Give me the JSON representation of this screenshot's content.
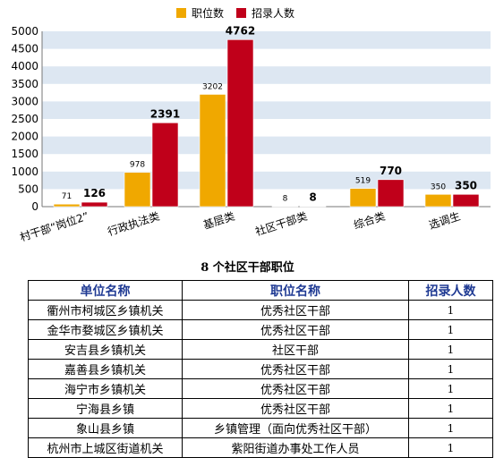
{
  "chart_data": {
    "type": "bar",
    "categories": [
      "村干部“岗位2”",
      "行政执法类",
      "基层类",
      "社区干部类",
      "综合类",
      "选调生"
    ],
    "series": [
      {
        "name": "职位数",
        "color": "#f0a800",
        "values": [
          71,
          978,
          3202,
          8,
          519,
          350
        ]
      },
      {
        "name": "招录人数",
        "color": "#c0001a",
        "values": [
          126,
          2391,
          4762,
          8,
          770,
          350
        ]
      }
    ],
    "yticks": [
      "0",
      "500",
      "1000",
      "1500",
      "2000",
      "2500",
      "3000",
      "3500",
      "4000",
      "4500",
      "5000"
    ],
    "ylim": [
      0,
      5000
    ],
    "grid_bands": true,
    "legend_position": "top"
  },
  "table": {
    "title": "8 个社区干部职位",
    "headers": [
      "单位名称",
      "职位名称",
      "招录人数"
    ],
    "rows": [
      [
        "衢州市柯城区乡镇机关",
        "优秀社区干部",
        "1"
      ],
      [
        "金华市婺城区乡镇机关",
        "优秀社区干部",
        "1"
      ],
      [
        "安吉县乡镇机关",
        "社区干部",
        "1"
      ],
      [
        "嘉善县乡镇机关",
        "优秀社区干部",
        "1"
      ],
      [
        "海宁市乡镇机关",
        "优秀社区干部",
        "1"
      ],
      [
        "宁海县乡镇",
        "优秀社区干部",
        "1"
      ],
      [
        "象山县乡镇",
        "乡镇管理（面向优秀社区干部）",
        "1"
      ],
      [
        "杭州市上城区街道机关",
        "紫阳街道办事处工作人员",
        "1"
      ]
    ]
  }
}
